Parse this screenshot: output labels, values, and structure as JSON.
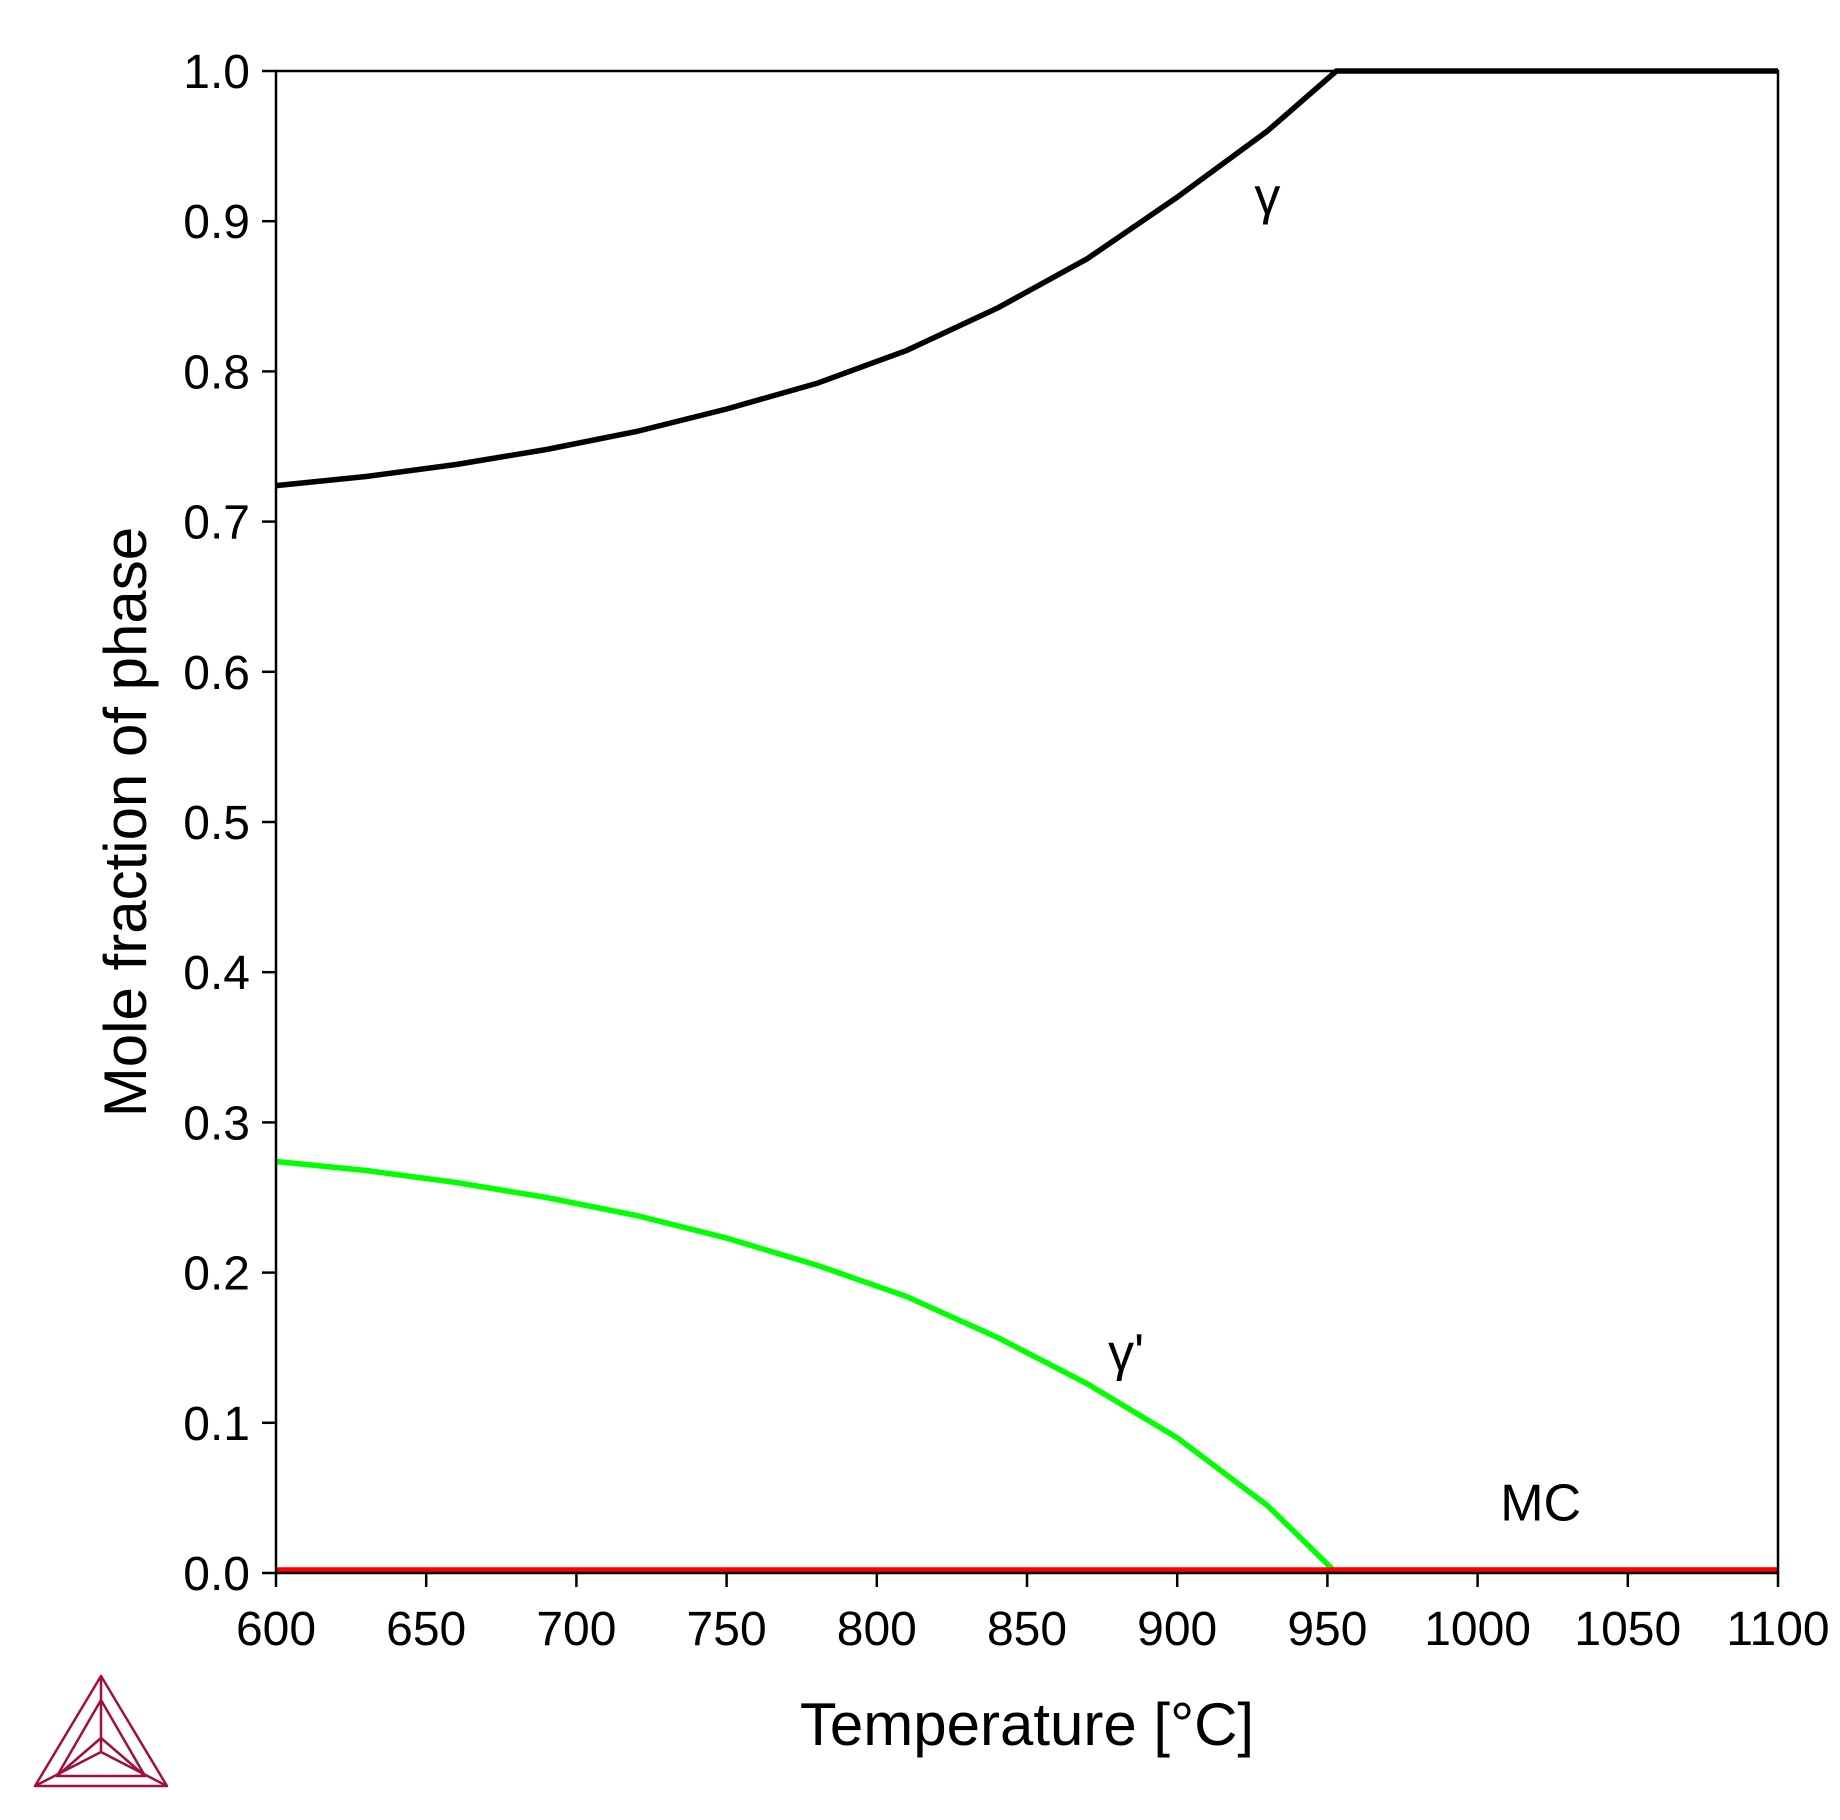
{
  "chart_data": {
    "type": "line",
    "xlabel": "Temperature [°C]",
    "ylabel": "Mole fraction of phase",
    "xlim": [
      600,
      1100
    ],
    "ylim": [
      0.0,
      1.0
    ],
    "x_ticks": [
      "600",
      "650",
      "700",
      "750",
      "800",
      "850",
      "900",
      "950",
      "1000",
      "1050",
      "1100"
    ],
    "y_ticks": [
      "0.0",
      "0.1",
      "0.2",
      "0.3",
      "0.4",
      "0.5",
      "0.6",
      "0.7",
      "0.8",
      "0.9",
      "1.0"
    ],
    "grid": false,
    "legend": "none",
    "series": [
      {
        "label": "γ",
        "color": "#000000",
        "points": [
          [
            600,
            0.724
          ],
          [
            630,
            0.73
          ],
          [
            660,
            0.738
          ],
          [
            690,
            0.748
          ],
          [
            720,
            0.76
          ],
          [
            750,
            0.775
          ],
          [
            780,
            0.792
          ],
          [
            810,
            0.814
          ],
          [
            840,
            0.842
          ],
          [
            870,
            0.875
          ],
          [
            900,
            0.916
          ],
          [
            930,
            0.96
          ],
          [
            953,
            1.0
          ],
          [
            1000,
            1.0
          ],
          [
            1100,
            1.0
          ]
        ]
      },
      {
        "label": "γ'",
        "color": "#00ff00",
        "points": [
          [
            600,
            0.274
          ],
          [
            630,
            0.268
          ],
          [
            660,
            0.26
          ],
          [
            690,
            0.25
          ],
          [
            720,
            0.238
          ],
          [
            750,
            0.223
          ],
          [
            780,
            0.205
          ],
          [
            810,
            0.184
          ],
          [
            840,
            0.157
          ],
          [
            870,
            0.126
          ],
          [
            900,
            0.09
          ],
          [
            930,
            0.045
          ],
          [
            952,
            0.002
          ],
          [
            1000,
            0.002
          ],
          [
            1100,
            0.002
          ]
        ]
      },
      {
        "label": "MC",
        "color": "#ff0000",
        "points": [
          [
            600,
            0.002
          ],
          [
            1100,
            0.002
          ]
        ]
      }
    ],
    "annotations": [
      {
        "text": "γ",
        "x": 930,
        "y": 0.905
      },
      {
        "text": "γ'",
        "x": 883,
        "y": 0.135
      },
      {
        "text": "MC",
        "x": 1021,
        "y": 0.035
      }
    ]
  },
  "logo": {
    "color": "#a0103a"
  }
}
